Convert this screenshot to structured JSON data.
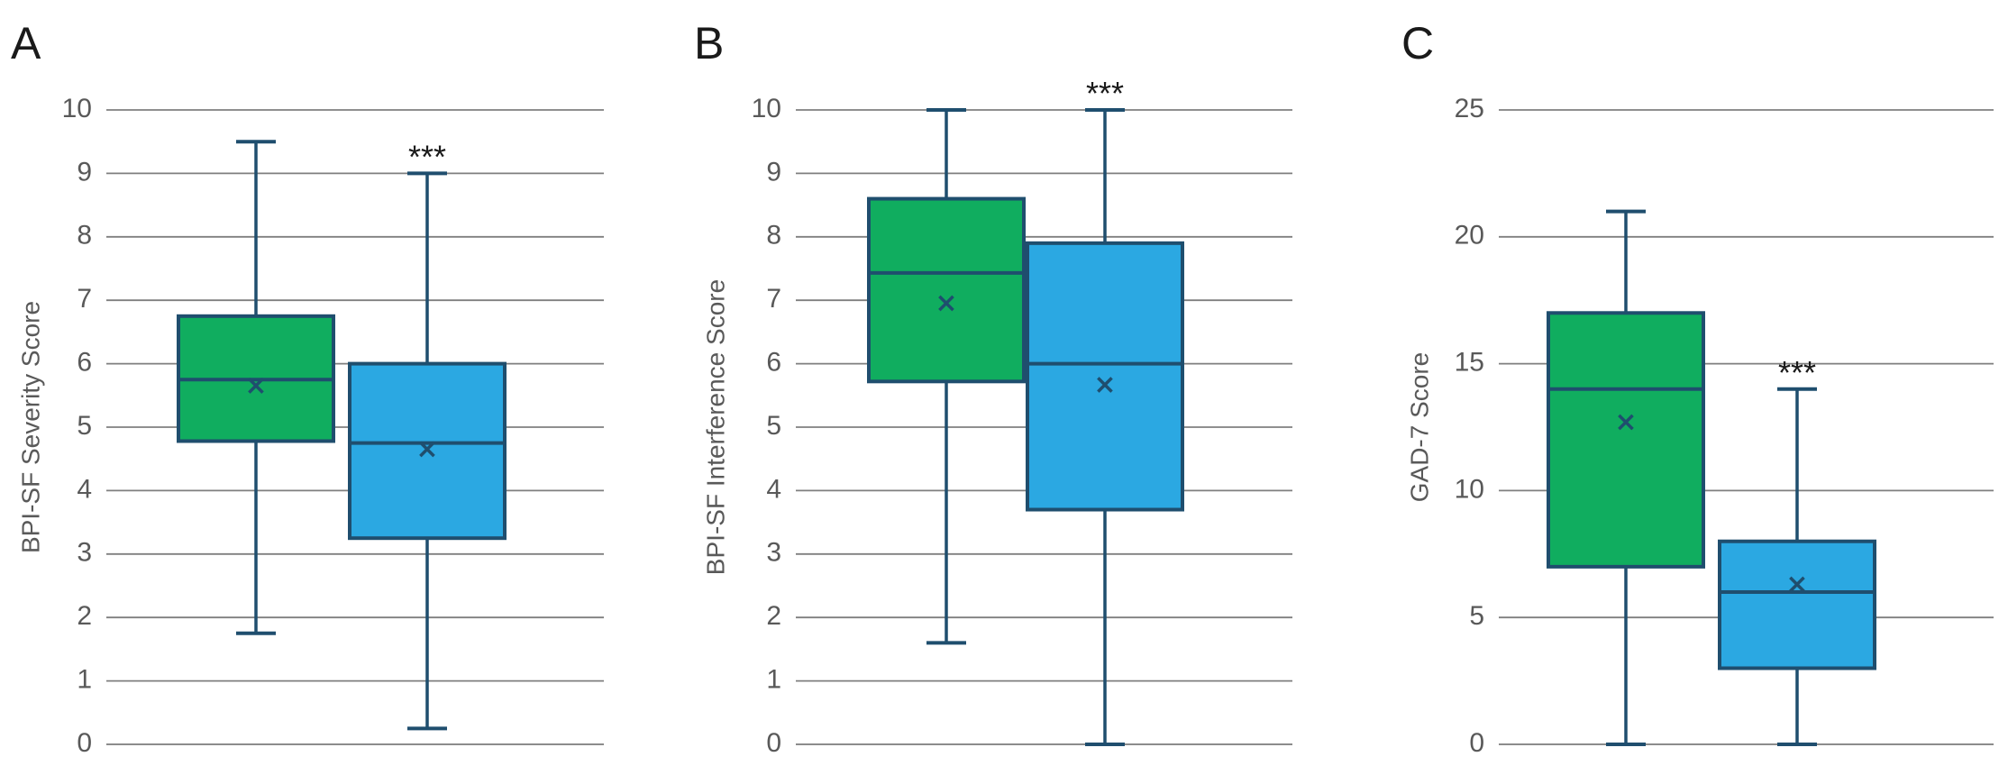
{
  "colors": {
    "group1": "#10ad5f",
    "group2": "#2ba8e2",
    "outline": "#1f4e6e",
    "grid": "#7f7f7f"
  },
  "chart_data": [
    {
      "panel": "A",
      "type": "box",
      "ylabel": "BPI-SF Severity Score",
      "ylim": [
        0,
        10
      ],
      "yticks": [
        "0",
        "1",
        "2",
        "3",
        "4",
        "5",
        "6",
        "7",
        "8",
        "9",
        "10"
      ],
      "yticks_values": [
        0,
        1,
        2,
        3,
        4,
        5,
        6,
        7,
        8,
        9,
        10
      ],
      "boxes": [
        {
          "color_key": "group1",
          "min": 1.75,
          "q1": 4.78,
          "median": 5.75,
          "q3": 6.75,
          "max": 9.5,
          "mean": 5.65,
          "mean_marker": "×",
          "annotation": ""
        },
        {
          "color_key": "group2",
          "min": 0.25,
          "q1": 3.25,
          "median": 4.75,
          "q3": 6.0,
          "max": 9.0,
          "mean": 4.65,
          "mean_marker": "×",
          "annotation": "***"
        }
      ]
    },
    {
      "panel": "B",
      "type": "box",
      "ylabel": "BPI-SF Interference Score",
      "ylim": [
        0,
        10
      ],
      "yticks": [
        "0",
        "1",
        "2",
        "3",
        "4",
        "5",
        "6",
        "7",
        "8",
        "9",
        "10"
      ],
      "yticks_values": [
        0,
        1,
        2,
        3,
        4,
        5,
        6,
        7,
        8,
        9,
        10
      ],
      "boxes": [
        {
          "color_key": "group1",
          "min": 1.6,
          "q1": 5.72,
          "median": 7.43,
          "q3": 8.6,
          "max": 10.0,
          "mean": 6.95,
          "mean_marker": "×",
          "annotation": ""
        },
        {
          "color_key": "group2",
          "min": 0.0,
          "q1": 3.7,
          "median": 6.0,
          "q3": 7.9,
          "max": 10.0,
          "mean": 5.67,
          "mean_marker": "×",
          "annotation": "***"
        }
      ]
    },
    {
      "panel": "C",
      "type": "box",
      "ylabel": "GAD-7 Score",
      "ylim": [
        0,
        25
      ],
      "yticks": [
        "0",
        "5",
        "10",
        "15",
        "20",
        "25"
      ],
      "yticks_values": [
        0,
        5,
        10,
        15,
        20,
        25
      ],
      "boxes": [
        {
          "color_key": "group1",
          "min": 0.0,
          "q1": 7.0,
          "median": 14.0,
          "q3": 17.0,
          "max": 21.0,
          "mean": 12.7,
          "mean_marker": "×",
          "annotation": ""
        },
        {
          "color_key": "group2",
          "min": 0.0,
          "q1": 3.0,
          "median": 6.0,
          "q3": 8.0,
          "max": 14.0,
          "mean": 6.3,
          "mean_marker": "×",
          "annotation": "***"
        }
      ]
    }
  ]
}
